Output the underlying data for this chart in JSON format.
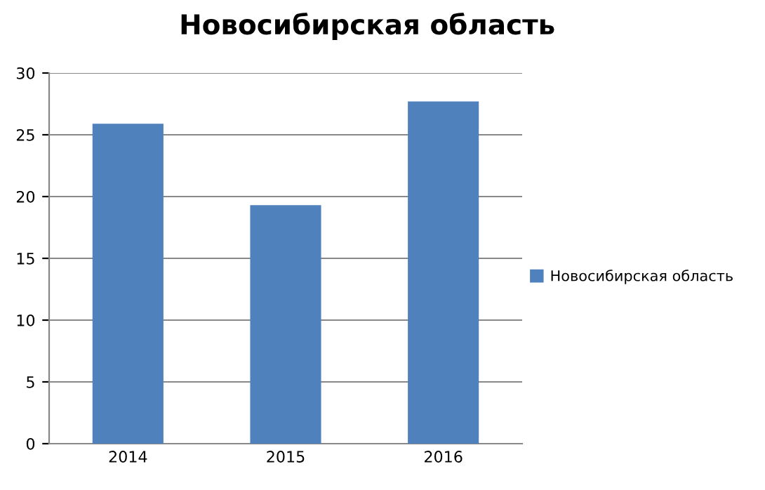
{
  "chart_data": {
    "type": "bar",
    "title": "Новосибирская область",
    "categories": [
      "2014",
      "2015",
      "2016"
    ],
    "series": [
      {
        "name": "Новосибирская область",
        "color": "#4f81bd",
        "values": [
          25.9,
          19.3,
          27.7
        ]
      }
    ],
    "ylim": [
      0,
      30
    ],
    "yticks": [
      0,
      5,
      10,
      15,
      20,
      25,
      30
    ],
    "grid": "y",
    "legend": "right"
  }
}
